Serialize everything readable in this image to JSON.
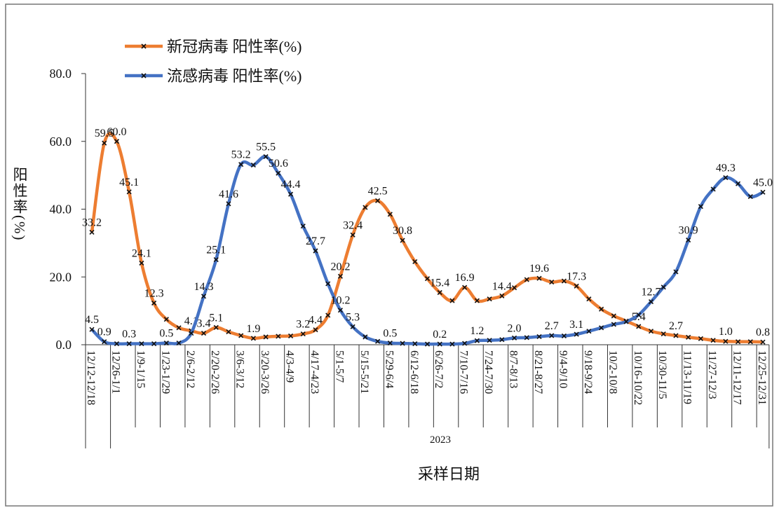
{
  "chart_data": {
    "type": "line",
    "ylabel": "阳性率(%)",
    "xlabel": "采样日期",
    "year": "2023",
    "categories": [
      "12/12-12/18",
      null,
      "12/26-1/1",
      null,
      "1/9-1/15",
      null,
      "1/23-1/29",
      null,
      "2/6-2/12",
      null,
      "2/20-2/26",
      null,
      "3/6-3/12",
      null,
      "3/20-3/26",
      null,
      "4/3-4/9",
      null,
      "4/17-4/23",
      null,
      "5/1-5/7",
      null,
      "5/15-5/21",
      null,
      "5/29-6/4",
      null,
      "6/12-6/18",
      null,
      "6/26-7/2",
      null,
      "7/10-7/16",
      null,
      "7/24-7/30",
      null,
      "8/7-8/13",
      null,
      "8/21-8/27",
      null,
      "9/4-9/10",
      null,
      "9/18-9/24",
      null,
      "10/2-10/8",
      null,
      "10/16-10/22",
      null,
      "10/30-11/5",
      null,
      "11/13-11/19",
      null,
      "11/27-12/3",
      null,
      "12/11-12/17",
      null,
      "12/25-12/31"
    ],
    "ylim": [
      0,
      80
    ],
    "yticks": [
      {
        "value": 0,
        "label": "0.0"
      },
      {
        "value": 20,
        "label": "20.0"
      },
      {
        "value": 40,
        "label": "40.0"
      },
      {
        "value": 60,
        "label": "60.0"
      },
      {
        "value": 80,
        "label": "80.0"
      }
    ],
    "legend": "top-left",
    "series": [
      {
        "name": "新冠病毒 阳性率(%)",
        "color": "#ed7d31",
        "values": [
          33.2,
          59.5,
          60.0,
          45.1,
          24.1,
          12.3,
          7.5,
          5.0,
          4.1,
          3.4,
          5.1,
          3.8,
          2.7,
          1.9,
          2.3,
          2.5,
          2.6,
          3.2,
          4.4,
          8.7,
          20.2,
          32.4,
          40.5,
          42.5,
          38.5,
          30.8,
          24.5,
          19.5,
          15.4,
          13.0,
          16.9,
          13.0,
          13.5,
          14.4,
          16.8,
          19.2,
          19.6,
          18.5,
          18.8,
          17.3,
          13.5,
          10.5,
          8.5,
          7.0,
          5.4,
          4.0,
          3.2,
          2.7,
          2.2,
          1.8,
          1.3,
          1.0,
          0.9,
          0.9,
          0.8
        ],
        "value_labels": [
          "33.2",
          "59.5",
          "60.0",
          "45.1",
          "24.1",
          "12.3",
          null,
          null,
          "4.1",
          "3.4",
          "5.1",
          null,
          null,
          "1.9",
          null,
          null,
          null,
          "3.2",
          "4.4",
          null,
          "20.2",
          "32.4",
          null,
          "42.5",
          null,
          "30.8",
          null,
          null,
          "15.4",
          null,
          "16.9",
          null,
          null,
          "14.4",
          null,
          null,
          "19.6",
          null,
          null,
          "17.3",
          null,
          null,
          null,
          null,
          "5.4",
          null,
          null,
          "2.7",
          null,
          null,
          null,
          "1.0",
          null,
          null,
          "0.8"
        ]
      },
      {
        "name": "流感病毒 阳性率(%)",
        "color": "#4472c4",
        "values": [
          4.5,
          0.9,
          0.3,
          0.3,
          0.3,
          0.3,
          0.5,
          0.5,
          3.4,
          14.3,
          25.1,
          41.6,
          53.2,
          53.0,
          55.5,
          50.6,
          44.4,
          35.0,
          27.7,
          18.0,
          10.2,
          5.3,
          2.3,
          1.0,
          0.5,
          0.4,
          0.3,
          0.2,
          0.2,
          0.2,
          0.4,
          1.2,
          1.3,
          1.5,
          2.0,
          2.1,
          2.4,
          2.7,
          2.6,
          3.1,
          4.0,
          5.0,
          6.0,
          6.8,
          8.8,
          12.7,
          17.0,
          21.5,
          30.9,
          40.8,
          45.9,
          49.3,
          47.5,
          43.7,
          45.0
        ],
        "value_labels": [
          "4.5",
          "0.9",
          null,
          "0.3",
          null,
          null,
          "0.5",
          null,
          null,
          "14.3",
          "25.1",
          "41.6",
          "53.2",
          null,
          "55.5",
          "50.6",
          "44.4",
          null,
          "27.7",
          null,
          "10.2",
          "5.3",
          null,
          null,
          "0.5",
          null,
          null,
          null,
          "0.2",
          null,
          null,
          "1.2",
          null,
          null,
          "2.0",
          null,
          null,
          "2.7",
          null,
          "3.1",
          null,
          null,
          null,
          null,
          null,
          "12.7",
          null,
          null,
          "30.9",
          null,
          null,
          "49.3",
          null,
          null,
          "45.0"
        ]
      }
    ]
  }
}
